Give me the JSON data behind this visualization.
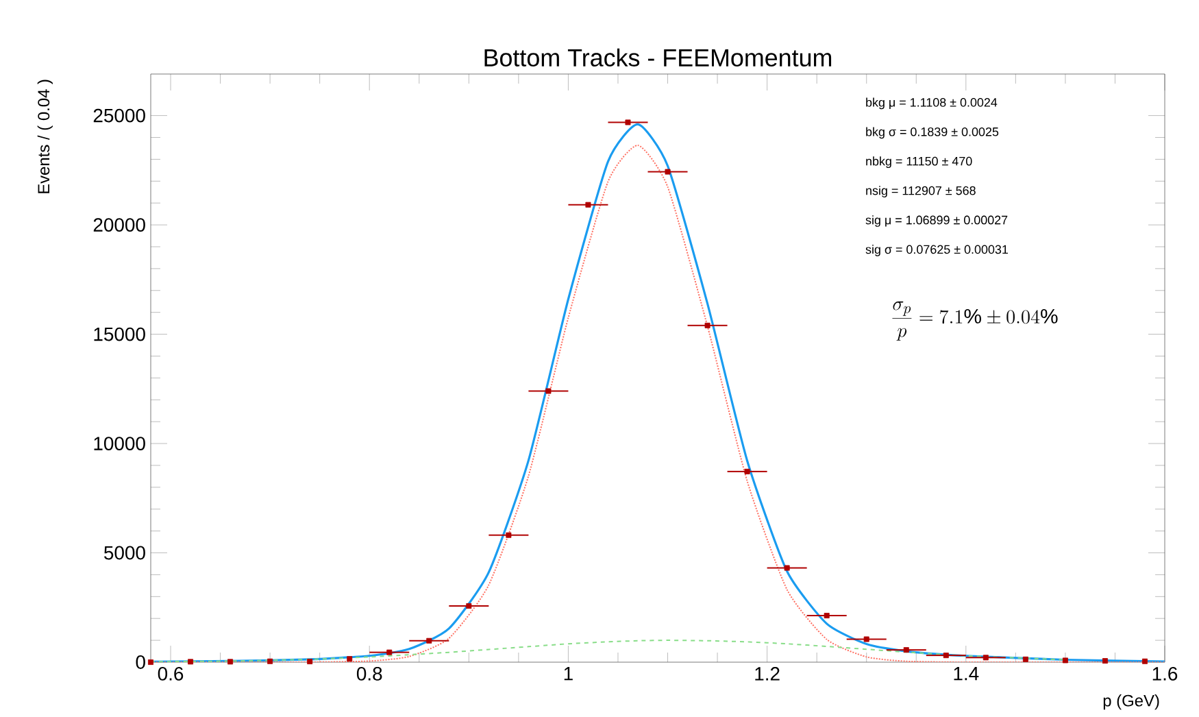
{
  "chart_data": {
    "type": "scatter",
    "title": "Bottom Tracks - FEEMomentum",
    "xlabel": "p (GeV)",
    "ylabel": "Events / ( 0.04 )",
    "xlim": [
      0.58,
      1.6
    ],
    "ylim": [
      0,
      26900
    ],
    "xticks": [
      0.6,
      0.8,
      1,
      1.2,
      1.4,
      1.6
    ],
    "yticks": [
      0,
      5000,
      10000,
      15000,
      20000,
      25000
    ],
    "grid": false,
    "series": [
      {
        "color": "#b00000",
        "marker": "square",
        "x": [
          0.58,
          0.62,
          0.66,
          0.7,
          0.74,
          0.78,
          0.82,
          0.86,
          0.9,
          0.94,
          0.98,
          1.02,
          1.06,
          1.1,
          1.14,
          1.18,
          1.22,
          1.26,
          1.3,
          1.34,
          1.38,
          1.42,
          1.46,
          1.5,
          1.54,
          1.58
        ],
        "values": [
          0,
          20,
          20,
          40,
          30,
          150,
          450,
          980,
          2570,
          5810,
          12400,
          20920,
          24690,
          22430,
          15400,
          8720,
          4310,
          2130,
          1050,
          560,
          310,
          210,
          130,
          80,
          60,
          40
        ],
        "xerrors": [
          null,
          null,
          null,
          null,
          null,
          null,
          0.02,
          0.02,
          0.02,
          0.02,
          0.02,
          0.02,
          0.02,
          0.02,
          0.02,
          0.02,
          0.02,
          0.02,
          0.02,
          0.02,
          0.02,
          0.02,
          null,
          null,
          null,
          null
        ]
      },
      {
        "type": "line",
        "color": "#1a9cf0",
        "line_style": "solid",
        "x": [
          0.58,
          0.66,
          0.74,
          0.8,
          0.84,
          0.88,
          0.92,
          0.96,
          1.0,
          1.04,
          1.07,
          1.1,
          1.14,
          1.18,
          1.22,
          1.26,
          1.3,
          1.34,
          1.4,
          1.5,
          1.6
        ],
        "values": [
          20,
          50,
          130,
          290,
          600,
          1540,
          4110,
          9230,
          16600,
          22900,
          24600,
          22700,
          16400,
          9210,
          4160,
          1760,
          830,
          500,
          290,
          110,
          30
        ]
      },
      {
        "type": "line",
        "color": "#ff6f61",
        "line_style": "dotted",
        "x": [
          0.58,
          0.66,
          0.74,
          0.8,
          0.84,
          0.88,
          0.92,
          0.96,
          1.0,
          1.04,
          1.07,
          1.1,
          1.14,
          1.18,
          1.22,
          1.26,
          1.3,
          1.34,
          1.4,
          1.5,
          1.6
        ],
        "values": [
          0,
          0,
          0,
          50,
          260,
          1090,
          3530,
          8520,
          15750,
          21980,
          23640,
          21740,
          15370,
          8280,
          3320,
          1040,
          240,
          40,
          0,
          0,
          0
        ]
      },
      {
        "type": "line",
        "color": "#88dd88",
        "line_style": "dashed",
        "x": [
          0.58,
          0.66,
          0.74,
          0.8,
          0.84,
          0.88,
          0.92,
          0.96,
          1.0,
          1.04,
          1.07,
          1.1,
          1.14,
          1.18,
          1.22,
          1.26,
          1.3,
          1.34,
          1.4,
          1.5
        ],
        "values": [
          20,
          50,
          130,
          240,
          340,
          450,
          580,
          710,
          840,
          930,
          980,
          1000,
          980,
          930,
          840,
          720,
          590,
          460,
          290,
          110
        ]
      }
    ],
    "annotations": [
      "bkg μ =  1.1108 ± 0.0024",
      "bkg σ =  0.1839 ± 0.0025",
      "nbkg =  11150 ± 470",
      "nsig =  112907 ± 568",
      "sig μ =  1.06899 ± 0.00027",
      "sig σ =  0.07625 ± 0.00031",
      "\\frac{\\sigma_{p}}{p} = 7.1\\% \\pm 0.04\\%"
    ]
  }
}
